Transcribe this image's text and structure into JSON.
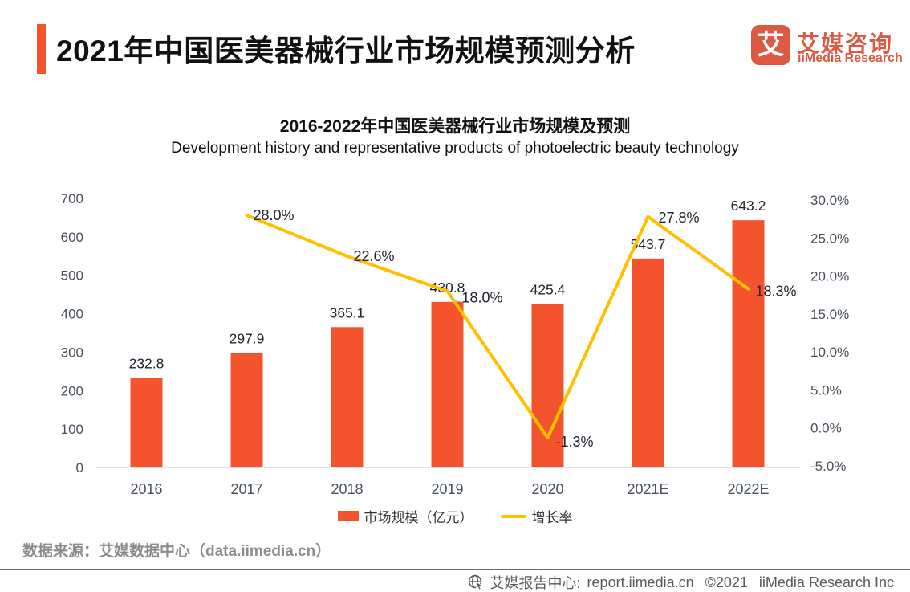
{
  "header": {
    "title": "2021年中国医美器械行业市场规模预测分析",
    "logo": {
      "glyph": "艾",
      "name_cn": "艾媒咨询",
      "name_en": "iiMedia Research"
    }
  },
  "chart_data": {
    "type": "bar+line",
    "title": "2016-2022年中国医美器械行业市场规模及预测",
    "subtitle": "Development history and representative products of photoelectric beauty technology",
    "categories": [
      "2016",
      "2017",
      "2018",
      "2019",
      "2020",
      "2021E",
      "2022E"
    ],
    "series": [
      {
        "name": "市场规模（亿元）",
        "type": "bar",
        "color": "#f4542d",
        "values": [
          232.8,
          297.9,
          365.1,
          430.8,
          425.4,
          543.7,
          643.2
        ]
      },
      {
        "name": "增长率",
        "type": "line",
        "color": "#ffc000",
        "values": [
          null,
          28.0,
          22.6,
          18.0,
          -1.3,
          27.8,
          18.3
        ]
      }
    ],
    "left_axis": {
      "min": 0,
      "max": 700,
      "step": 100,
      "ticks": [
        "0",
        "100",
        "200",
        "300",
        "400",
        "500",
        "600",
        "700"
      ]
    },
    "right_axis": {
      "min": -5,
      "max": 30,
      "step": 5,
      "ticks": [
        "-5.0%",
        "0.0%",
        "5.0%",
        "10.0%",
        "15.0%",
        "20.0%",
        "25.0%",
        "30.0%"
      ]
    },
    "legend_position": "bottom",
    "grid": false
  },
  "footer": {
    "source": "数据来源：艾媒数据中心（data.iimedia.cn）",
    "credit_site_label": "艾媒报告中心:",
    "credit_site": "report.iimedia.cn",
    "credit_copyright": "©2021",
    "credit_company": "iiMedia Research  Inc"
  },
  "colors": {
    "bar": "#f4542d",
    "line": "#ffc000",
    "accent": "#f4532c",
    "logo": "#dc5a41"
  }
}
